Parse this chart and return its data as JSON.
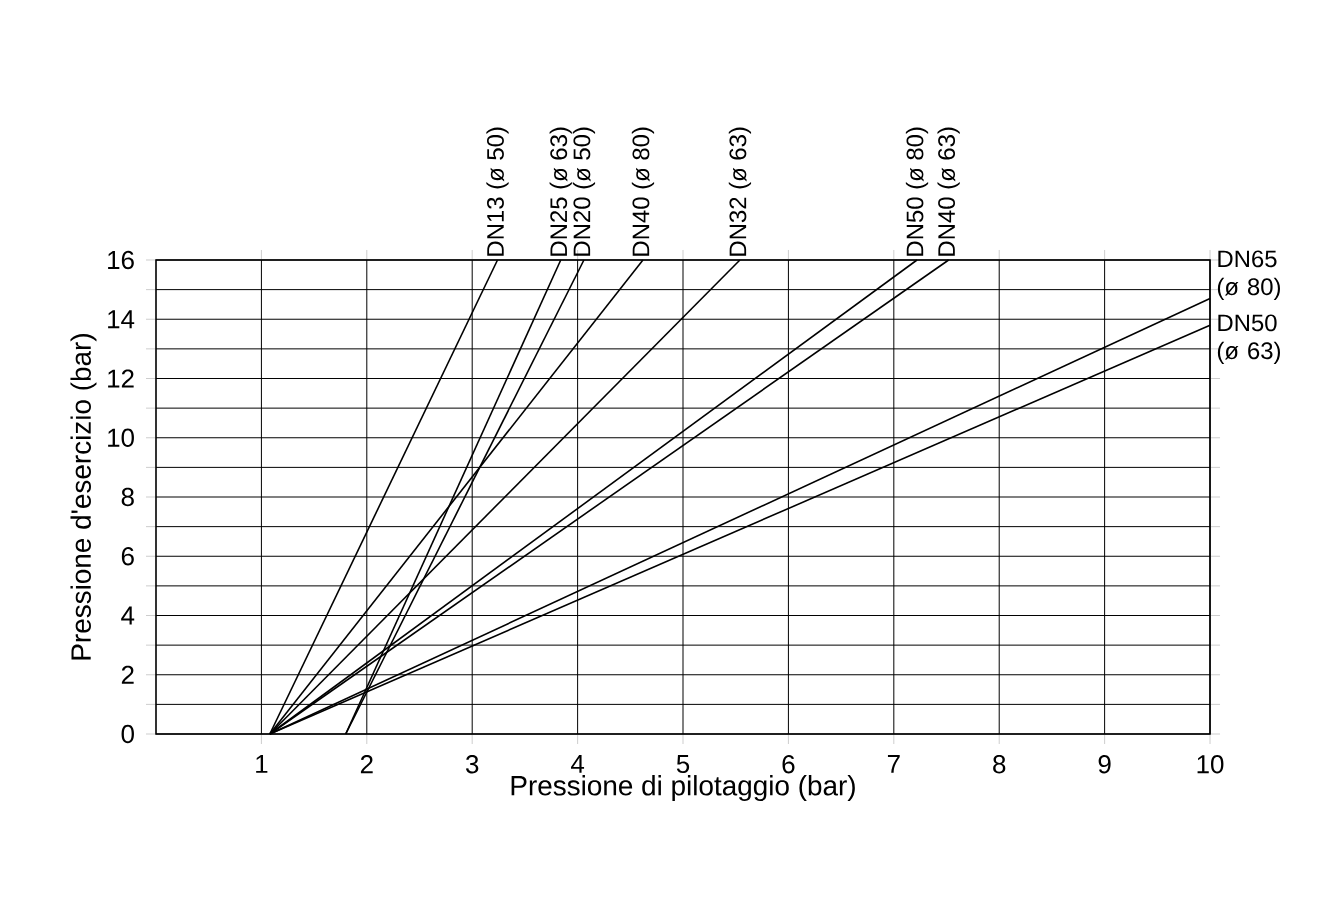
{
  "chart_data": {
    "type": "line",
    "xlabel": "Pressione di pilotaggio (bar)",
    "ylabel": "Pressione d'esercizio (bar)",
    "xlim": [
      0,
      10
    ],
    "ylim": [
      0,
      16
    ],
    "xticks": [
      1,
      2,
      3,
      4,
      5,
      6,
      7,
      8,
      9,
      10
    ],
    "yticks": [
      0,
      {
        "value": 1,
        "label": null
      },
      2,
      {
        "value": 3,
        "label": null
      },
      4,
      {
        "value": 5,
        "label": null
      },
      6,
      {
        "value": 7,
        "label": null
      },
      8,
      {
        "value": 9,
        "label": null
      },
      10,
      {
        "value": 11,
        "label": null
      },
      12,
      {
        "value": 13,
        "label": null
      },
      14,
      {
        "value": 15,
        "label": null
      },
      16
    ],
    "grid": true,
    "marker": "none",
    "line_style": "solid",
    "series": [
      {
        "name": "DN13 (ø 50)",
        "color": "#000000",
        "x": [
          1.08,
          3.24
        ],
        "values": [
          0,
          16
        ]
      },
      {
        "name": "DN25 (ø 63)",
        "color": "#000000",
        "x": [
          1.8,
          3.84
        ],
        "values": [
          0,
          16
        ]
      },
      {
        "name": "DN20 (ø 50)",
        "color": "#000000",
        "x": [
          1.8,
          4.06
        ],
        "values": [
          0,
          16
        ]
      },
      {
        "name": "DN40 (ø 80)",
        "color": "#000000",
        "x": [
          1.08,
          4.62
        ],
        "values": [
          0,
          16
        ]
      },
      {
        "name": "DN32 (ø 63)",
        "color": "#000000",
        "x": [
          1.08,
          5.54
        ],
        "values": [
          0,
          16
        ]
      },
      {
        "name": "DN50 (ø 80)",
        "color": "#000000",
        "x": [
          1.08,
          7.22
        ],
        "values": [
          0,
          16
        ]
      },
      {
        "name": "DN40 (ø 63)",
        "color": "#000000",
        "x": [
          1.08,
          7.52
        ],
        "values": [
          0,
          16
        ]
      },
      {
        "name": "DN65 (ø 80)",
        "color": "#000000",
        "x": [
          1.08,
          10
        ],
        "values": [
          0,
          14.7
        ]
      },
      {
        "name": "DN50 (ø 63)",
        "color": "#000000",
        "x": [
          1.08,
          10
        ],
        "values": [
          0,
          13.8
        ]
      }
    ]
  }
}
